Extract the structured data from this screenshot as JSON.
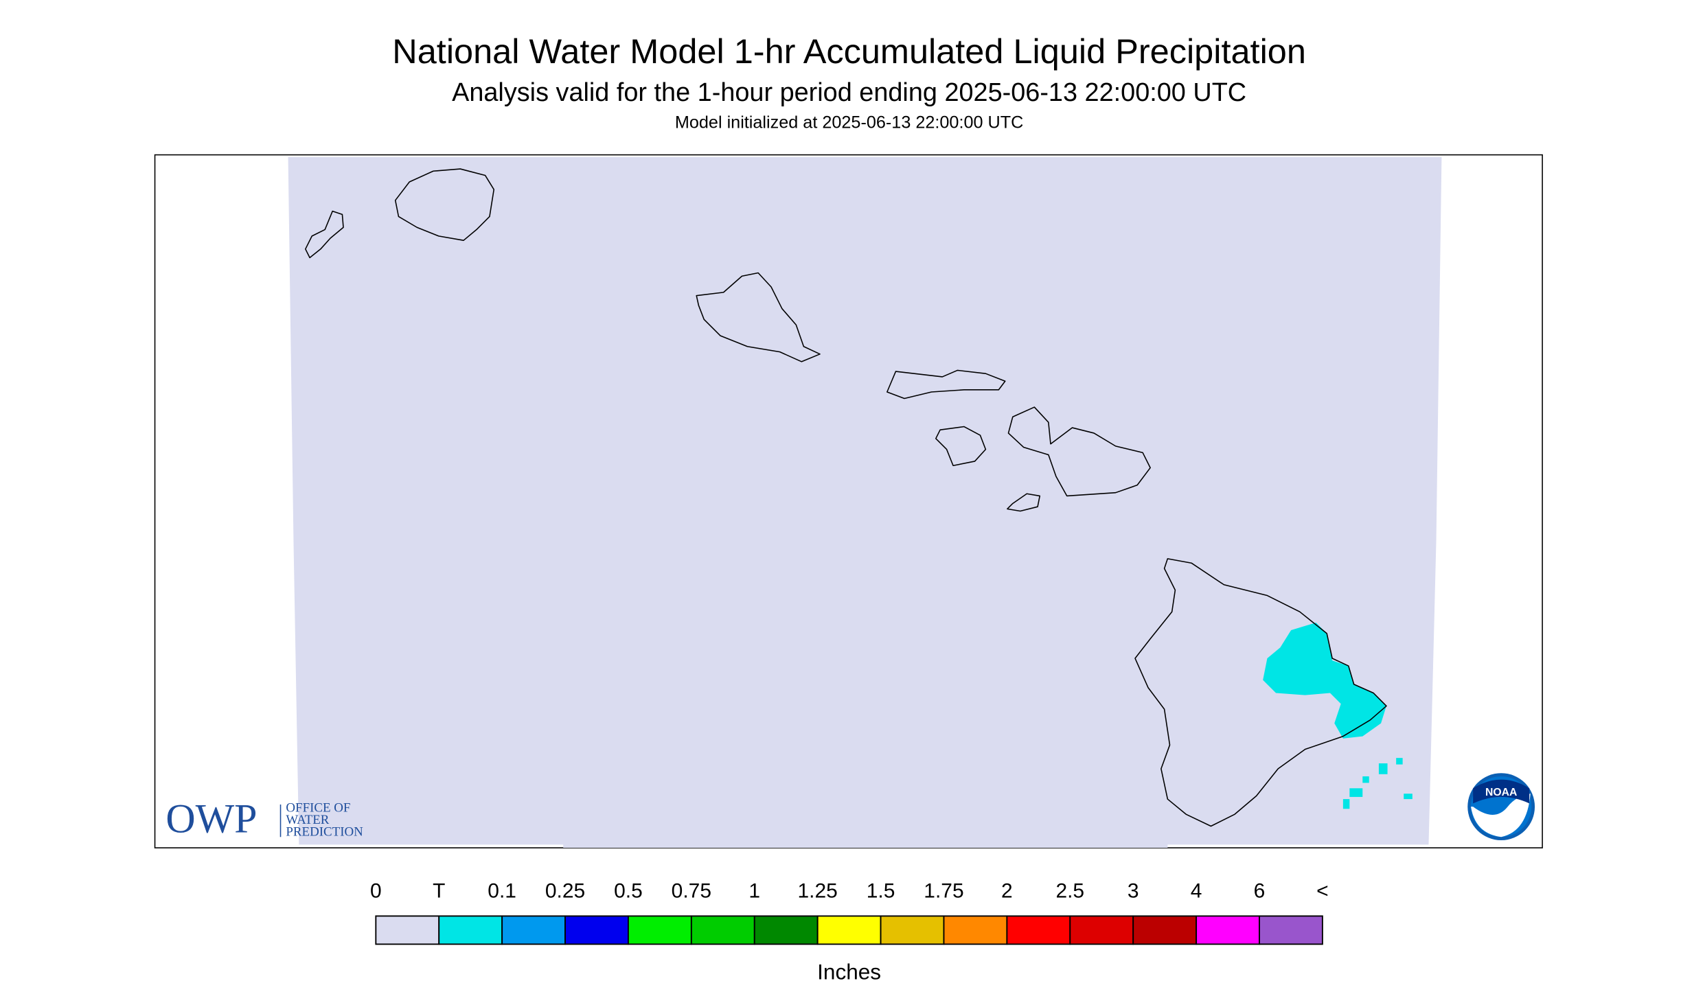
{
  "header": {
    "title": "National Water Model 1-hr Accumulated Liquid Precipitation",
    "subtitle": "Analysis valid for the 1-hour period ending 2025-06-13 22:00:00 UTC",
    "note": "Model initialized at 2025-06-13 22:00:00 UTC"
  },
  "logos": {
    "owp": "OWP",
    "owp_lines": [
      "OFFICE OF",
      "WATER",
      "PREDICTION"
    ],
    "noaa": "NOAA"
  },
  "legend": {
    "labels": [
      "0",
      "T",
      "0.1",
      "0.25",
      "0.5",
      "0.75",
      "1",
      "1.25",
      "1.5",
      "1.75",
      "2",
      "2.5",
      "3",
      "4",
      "6",
      "<"
    ],
    "colors": [
      "#dadcf0",
      "#00e5e5",
      "#0099ee",
      "#0000ee",
      "#00ee00",
      "#00cc00",
      "#008800",
      "#ffff00",
      "#e5c000",
      "#ff8800",
      "#ff0000",
      "#dd0000",
      "#bb0000",
      "#ff00ff",
      "#9955cc"
    ],
    "unit": "Inches"
  }
}
